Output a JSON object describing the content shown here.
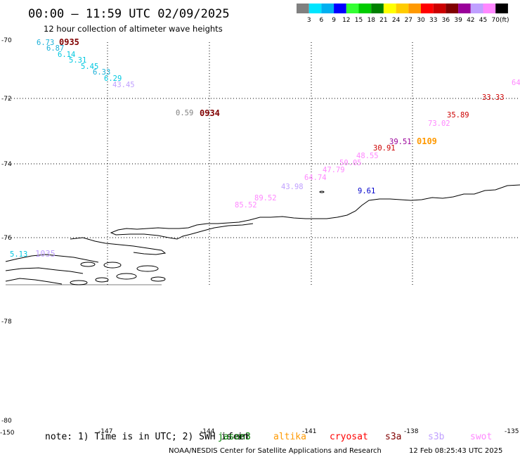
{
  "title": "00:00 – 11:59 UTC 02/09/2025",
  "subtitle": "12 hour collection of altimeter wave heights",
  "legend": {
    "unit_label": "(ft)",
    "colors": [
      "#808080",
      "#00e5ff",
      "#00b0f0",
      "#0000ff",
      "#33ff33",
      "#00cc00",
      "#008000",
      "#ffff00",
      "#ffcc00",
      "#ff9900",
      "#ff0000",
      "#cc0000",
      "#800000",
      "#990099",
      "#c0a0ff",
      "#ff88ff",
      "#000000"
    ],
    "labels": [
      "3",
      "6",
      "9",
      "12",
      "15",
      "18",
      "21",
      "24",
      "27",
      "30",
      "33",
      "36",
      "39",
      "42",
      "45",
      "70"
    ]
  },
  "y_axis_labels": [
    "-70",
    "-72",
    "-74",
    "-76",
    "-78",
    "-78",
    "-80",
    "-150"
  ],
  "x_axis_labels": [
    "-147",
    "-144",
    "-141",
    "-138",
    "-135"
  ],
  "wave_values": [
    {
      "text": "6.73",
      "color": "#1ab0d8"
    },
    {
      "text": "6.87",
      "color": "#1ab0d8"
    },
    {
      "text": "6.14",
      "color": "#00c8e0"
    },
    {
      "text": "5.31",
      "color": "#00c8e0"
    },
    {
      "text": "5.45",
      "color": "#00c8e0"
    },
    {
      "text": "6.33",
      "color": "#1ab0d8"
    },
    {
      "text": "6.29",
      "color": "#00c8e0"
    },
    {
      "text": "43.45",
      "color": "#c0a0ff"
    },
    {
      "text": "0.59",
      "color": "#808080"
    },
    {
      "text": "64",
      "color": "#ff88ff"
    },
    {
      "text": "33.33",
      "color": "#cc0000"
    },
    {
      "text": "35.89",
      "color": "#cc0000"
    },
    {
      "text": "73.02",
      "color": "#ff88ff"
    },
    {
      "text": "39.51",
      "color": "#990099"
    },
    {
      "text": "30.91",
      "color": "#cc0000"
    },
    {
      "text": "48.55",
      "color": "#ff88ff"
    },
    {
      "text": "50.05",
      "color": "#ff88ff"
    },
    {
      "text": "47.79",
      "color": "#ff88ff"
    },
    {
      "text": "64.74",
      "color": "#ff88ff"
    },
    {
      "text": "43.98",
      "color": "#c0a0ff"
    },
    {
      "text": "89.52",
      "color": "#ff88ff"
    },
    {
      "text": "85.52",
      "color": "#ff88ff"
    },
    {
      "text": "9.61",
      "color": "#0000cc"
    },
    {
      "text": "5.13",
      "color": "#00c8e0"
    }
  ],
  "pass_times": [
    {
      "text": "0935",
      "color": "#800000"
    },
    {
      "text": "0934",
      "color": "#800000"
    },
    {
      "text": "0109",
      "color": "#ff9900"
    },
    {
      "text": "1035",
      "color": "#c0a0ff"
    }
  ],
  "note": {
    "prefix": "note: 1) Time is in UTC; 2) SWH is in",
    "overlap": "feet",
    "satellites": [
      {
        "name": "jason3",
        "color": "#008000"
      },
      {
        "name": "altika",
        "color": "#ff9900"
      },
      {
        "name": "cryosat",
        "color": "#ff0000"
      },
      {
        "name": "s3a",
        "color": "#800000"
      },
      {
        "name": "s3b",
        "color": "#c0a0ff"
      },
      {
        "name": "swot",
        "color": "#ff88ff"
      }
    ]
  },
  "credit": "NOAA/NESDIS Center for Satellite Applications and Research",
  "timestamp": "12 Feb 08:25:43 UTC 2025"
}
